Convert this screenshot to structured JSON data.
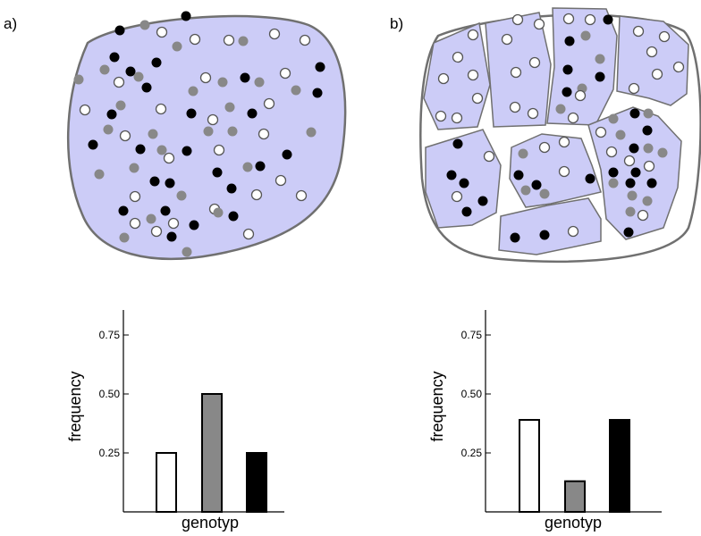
{
  "panels": [
    {
      "label": "a)",
      "chart_data": {
        "type": "bar",
        "categories": [
          "white",
          "grey",
          "black"
        ],
        "values": [
          0.25,
          0.5,
          0.25
        ],
        "xlabel": "genotyp",
        "ylabel": "frequency",
        "yticks": [
          "0.25",
          "0.50",
          "0.75"
        ],
        "ylim": [
          0,
          0.85
        ],
        "bar_colors": [
          "#ffffff",
          "#888888",
          "#000000"
        ]
      }
    },
    {
      "label": "b)",
      "chart_data": {
        "type": "bar",
        "categories": [
          "white",
          "grey",
          "black"
        ],
        "values": [
          0.39,
          0.13,
          0.39
        ],
        "xlabel": "genotyp",
        "ylabel": "frequency",
        "yticks": [
          "0.25",
          "0.50",
          "0.75"
        ],
        "ylim": [
          0,
          0.85
        ],
        "bar_colors": [
          "#ffffff",
          "#888888",
          "#000000"
        ]
      }
    }
  ],
  "colors": {
    "cell_fill": "#ccccf7",
    "outline": "#707070",
    "grey_dot": "#888888",
    "black_dot": "#000000",
    "white_dot": "#ffffff"
  }
}
